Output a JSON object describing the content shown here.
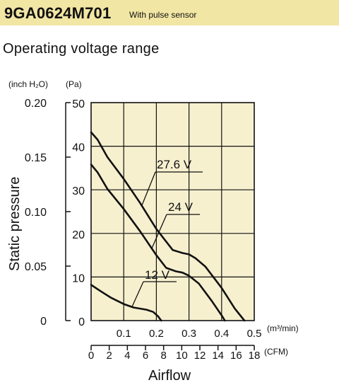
{
  "header": {
    "model": "9GA0624M701",
    "subtitle": "With pulse sensor"
  },
  "section_title": "Operating voltage range",
  "chart_data": {
    "type": "line",
    "title": "Operating voltage range",
    "ylabel": "Static pressure",
    "xlabel": "Airflow",
    "y_units": {
      "inner": "(inch H₂O)",
      "outer": "(Pa)"
    },
    "x_units": {
      "m3": "(m³/min)",
      "cfm": "(CFM)"
    },
    "ylim_pa": [
      0,
      50
    ],
    "xlim_m3min": [
      0,
      0.5
    ],
    "y_ticks_pa": [
      "0",
      "10",
      "20",
      "30",
      "40",
      "50"
    ],
    "y_ticks_inh2o": [
      "0",
      "0.05",
      "0.10",
      "0.15",
      "0.20"
    ],
    "x_ticks_m3min": [
      "0.1",
      "0.2",
      "0.3",
      "0.4",
      "0.5"
    ],
    "x_ticks_cfm": [
      "0",
      "2",
      "4",
      "6",
      "8",
      "10",
      "12",
      "14",
      "16",
      "18"
    ],
    "grid": true,
    "series": [
      {
        "name": "27.6 V",
        "points": [
          [
            0,
            43.2
          ],
          [
            0.02,
            41.5
          ],
          [
            0.05,
            37.5
          ],
          [
            0.1,
            32.5
          ],
          [
            0.15,
            27
          ],
          [
            0.2,
            21
          ],
          [
            0.25,
            16.2
          ],
          [
            0.28,
            15.5
          ],
          [
            0.3,
            15.2
          ],
          [
            0.32,
            14.3
          ],
          [
            0.35,
            12.4
          ],
          [
            0.4,
            7.5
          ],
          [
            0.44,
            2.8
          ],
          [
            0.47,
            0
          ]
        ]
      },
      {
        "name": "24 V",
        "points": [
          [
            0,
            35.8
          ],
          [
            0.02,
            34
          ],
          [
            0.05,
            30.2
          ],
          [
            0.1,
            25.6
          ],
          [
            0.15,
            20.5
          ],
          [
            0.2,
            15
          ],
          [
            0.23,
            12.1
          ],
          [
            0.26,
            11.3
          ],
          [
            0.28,
            11
          ],
          [
            0.3,
            10.3
          ],
          [
            0.33,
            8.5
          ],
          [
            0.37,
            4.5
          ],
          [
            0.4,
            1.2
          ],
          [
            0.41,
            0
          ]
        ]
      },
      {
        "name": "12 V",
        "points": [
          [
            0,
            8.2
          ],
          [
            0.03,
            6.7
          ],
          [
            0.06,
            5.3
          ],
          [
            0.1,
            3.8
          ],
          [
            0.13,
            3
          ],
          [
            0.17,
            2.5
          ],
          [
            0.19,
            2
          ],
          [
            0.205,
            1
          ],
          [
            0.215,
            0
          ]
        ]
      }
    ],
    "labels": [
      "27.6 V",
      "24 V",
      "12 V"
    ]
  }
}
